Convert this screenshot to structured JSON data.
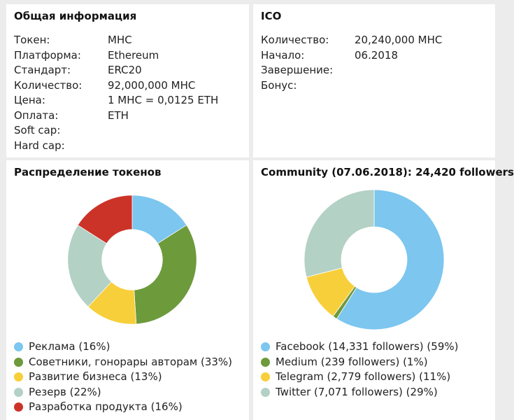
{
  "general": {
    "title": "Общая информация",
    "rows": [
      {
        "label": "Токен:",
        "value": "MHC"
      },
      {
        "label": "Платформа:",
        "value": "Ethereum"
      },
      {
        "label": "Стандарт:",
        "value": "ERC20"
      },
      {
        "label": "Количество:",
        "value": "92,000,000 MHC"
      },
      {
        "label": "Цена:",
        "value": "1 MHC = 0,0125 ETH"
      },
      {
        "label": "Оплата:",
        "value": "ETH"
      },
      {
        "label": "Soft cap:",
        "value": ""
      },
      {
        "label": "Hard cap:",
        "value": ""
      }
    ]
  },
  "ico": {
    "title": "ICO",
    "rows": [
      {
        "label": "Количество:",
        "value": "20,240,000 MHC"
      },
      {
        "label": "Начало:",
        "value": "06.2018"
      },
      {
        "label": "Завершение:",
        "value": ""
      },
      {
        "label": "Бонус:",
        "value": ""
      }
    ]
  },
  "distribution": {
    "title": "Распределение токенов",
    "legend": [
      {
        "label": "Реклама (16%)",
        "color": "#7cc6ef"
      },
      {
        "label": "Советники, гонорары авторам (33%)",
        "color": "#6d9a3b"
      },
      {
        "label": "Развитие бизнеса (13%)",
        "color": "#f7cf3a"
      },
      {
        "label": "Резерв (22%)",
        "color": "#b3d1c5"
      },
      {
        "label": "Разработка продукта (16%)",
        "color": "#cc3328"
      }
    ]
  },
  "community": {
    "title": "Community (07.06.2018): 24,420 followers",
    "legend": [
      {
        "label": "Facebook (14,331 followers) (59%)",
        "color": "#7cc6ef"
      },
      {
        "label": "Medium (239 followers) (1%)",
        "color": "#6d9a3b"
      },
      {
        "label": "Telegram (2,779 followers) (11%)",
        "color": "#f7cf3a"
      },
      {
        "label": "Twitter (7,071 followers) (29%)",
        "color": "#b3d1c5"
      }
    ]
  },
  "chart_data": [
    {
      "type": "pie",
      "categories": [
        "Реклама",
        "Советники, гонорары авторам",
        "Развитие бизнеса",
        "Резерв",
        "Разработка продукта"
      ],
      "values": [
        16,
        33,
        13,
        22,
        16
      ],
      "colors": [
        "#7cc6ef",
        "#6d9a3b",
        "#f7cf3a",
        "#b3d1c5",
        "#cc3328"
      ],
      "title": "Распределение токенов",
      "donut": true
    },
    {
      "type": "pie",
      "categories": [
        "Facebook",
        "Medium",
        "Telegram",
        "Twitter"
      ],
      "values": [
        59,
        1,
        11,
        29
      ],
      "colors": [
        "#7cc6ef",
        "#6d9a3b",
        "#f7cf3a",
        "#b3d1c5"
      ],
      "title": "Community (07.06.2018): 24,420 followers",
      "donut": true
    }
  ]
}
